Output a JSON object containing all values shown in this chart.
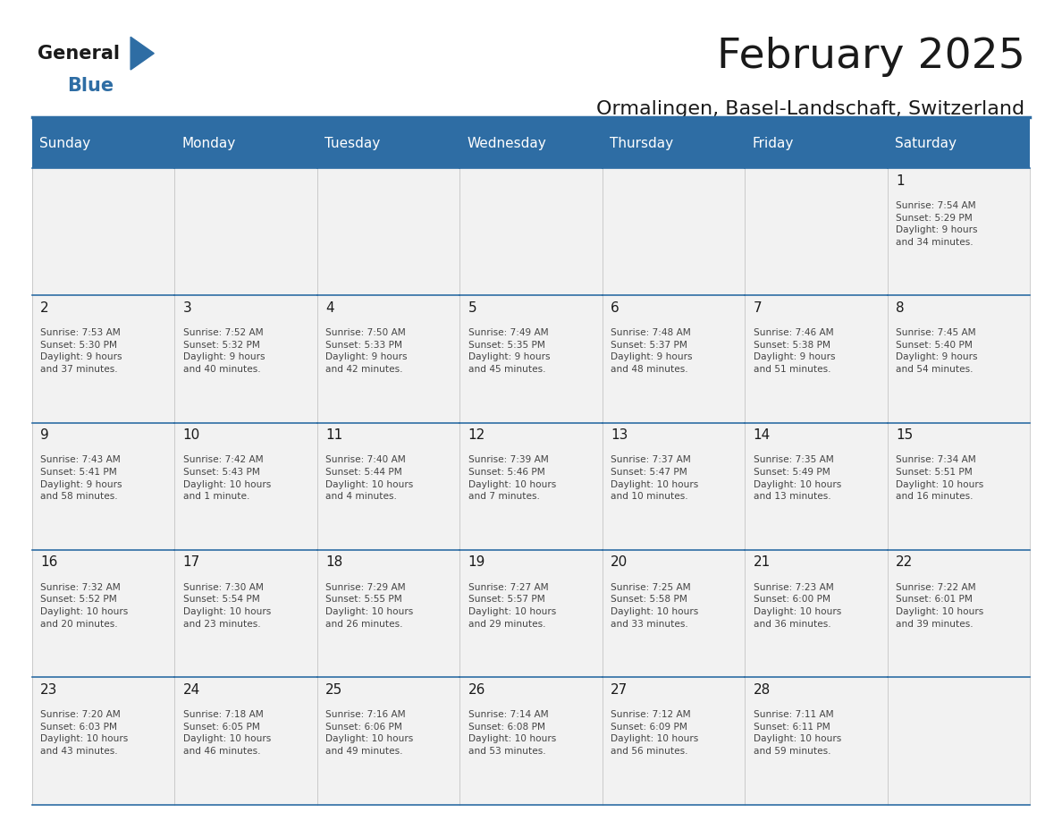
{
  "title": "February 2025",
  "subtitle": "Ormalingen, Basel-Landschaft, Switzerland",
  "header_bg_color": "#2E6DA4",
  "header_text_color": "#FFFFFF",
  "cell_bg_color": "#F2F2F2",
  "day_headers": [
    "Sunday",
    "Monday",
    "Tuesday",
    "Wednesday",
    "Thursday",
    "Friday",
    "Saturday"
  ],
  "title_color": "#1a1a1a",
  "subtitle_color": "#1a1a1a",
  "cell_text_color": "#444444",
  "day_num_color": "#1a1a1a",
  "logo_general_color": "#1a1a1a",
  "logo_blue_color": "#2E6DA4",
  "weeks": [
    [
      {
        "day": null,
        "info": null
      },
      {
        "day": null,
        "info": null
      },
      {
        "day": null,
        "info": null
      },
      {
        "day": null,
        "info": null
      },
      {
        "day": null,
        "info": null
      },
      {
        "day": null,
        "info": null
      },
      {
        "day": 1,
        "info": "Sunrise: 7:54 AM\nSunset: 5:29 PM\nDaylight: 9 hours\nand 34 minutes."
      }
    ],
    [
      {
        "day": 2,
        "info": "Sunrise: 7:53 AM\nSunset: 5:30 PM\nDaylight: 9 hours\nand 37 minutes."
      },
      {
        "day": 3,
        "info": "Sunrise: 7:52 AM\nSunset: 5:32 PM\nDaylight: 9 hours\nand 40 minutes."
      },
      {
        "day": 4,
        "info": "Sunrise: 7:50 AM\nSunset: 5:33 PM\nDaylight: 9 hours\nand 42 minutes."
      },
      {
        "day": 5,
        "info": "Sunrise: 7:49 AM\nSunset: 5:35 PM\nDaylight: 9 hours\nand 45 minutes."
      },
      {
        "day": 6,
        "info": "Sunrise: 7:48 AM\nSunset: 5:37 PM\nDaylight: 9 hours\nand 48 minutes."
      },
      {
        "day": 7,
        "info": "Sunrise: 7:46 AM\nSunset: 5:38 PM\nDaylight: 9 hours\nand 51 minutes."
      },
      {
        "day": 8,
        "info": "Sunrise: 7:45 AM\nSunset: 5:40 PM\nDaylight: 9 hours\nand 54 minutes."
      }
    ],
    [
      {
        "day": 9,
        "info": "Sunrise: 7:43 AM\nSunset: 5:41 PM\nDaylight: 9 hours\nand 58 minutes."
      },
      {
        "day": 10,
        "info": "Sunrise: 7:42 AM\nSunset: 5:43 PM\nDaylight: 10 hours\nand 1 minute."
      },
      {
        "day": 11,
        "info": "Sunrise: 7:40 AM\nSunset: 5:44 PM\nDaylight: 10 hours\nand 4 minutes."
      },
      {
        "day": 12,
        "info": "Sunrise: 7:39 AM\nSunset: 5:46 PM\nDaylight: 10 hours\nand 7 minutes."
      },
      {
        "day": 13,
        "info": "Sunrise: 7:37 AM\nSunset: 5:47 PM\nDaylight: 10 hours\nand 10 minutes."
      },
      {
        "day": 14,
        "info": "Sunrise: 7:35 AM\nSunset: 5:49 PM\nDaylight: 10 hours\nand 13 minutes."
      },
      {
        "day": 15,
        "info": "Sunrise: 7:34 AM\nSunset: 5:51 PM\nDaylight: 10 hours\nand 16 minutes."
      }
    ],
    [
      {
        "day": 16,
        "info": "Sunrise: 7:32 AM\nSunset: 5:52 PM\nDaylight: 10 hours\nand 20 minutes."
      },
      {
        "day": 17,
        "info": "Sunrise: 7:30 AM\nSunset: 5:54 PM\nDaylight: 10 hours\nand 23 minutes."
      },
      {
        "day": 18,
        "info": "Sunrise: 7:29 AM\nSunset: 5:55 PM\nDaylight: 10 hours\nand 26 minutes."
      },
      {
        "day": 19,
        "info": "Sunrise: 7:27 AM\nSunset: 5:57 PM\nDaylight: 10 hours\nand 29 minutes."
      },
      {
        "day": 20,
        "info": "Sunrise: 7:25 AM\nSunset: 5:58 PM\nDaylight: 10 hours\nand 33 minutes."
      },
      {
        "day": 21,
        "info": "Sunrise: 7:23 AM\nSunset: 6:00 PM\nDaylight: 10 hours\nand 36 minutes."
      },
      {
        "day": 22,
        "info": "Sunrise: 7:22 AM\nSunset: 6:01 PM\nDaylight: 10 hours\nand 39 minutes."
      }
    ],
    [
      {
        "day": 23,
        "info": "Sunrise: 7:20 AM\nSunset: 6:03 PM\nDaylight: 10 hours\nand 43 minutes."
      },
      {
        "day": 24,
        "info": "Sunrise: 7:18 AM\nSunset: 6:05 PM\nDaylight: 10 hours\nand 46 minutes."
      },
      {
        "day": 25,
        "info": "Sunrise: 7:16 AM\nSunset: 6:06 PM\nDaylight: 10 hours\nand 49 minutes."
      },
      {
        "day": 26,
        "info": "Sunrise: 7:14 AM\nSunset: 6:08 PM\nDaylight: 10 hours\nand 53 minutes."
      },
      {
        "day": 27,
        "info": "Sunrise: 7:12 AM\nSunset: 6:09 PM\nDaylight: 10 hours\nand 56 minutes."
      },
      {
        "day": 28,
        "info": "Sunrise: 7:11 AM\nSunset: 6:11 PM\nDaylight: 10 hours\nand 59 minutes."
      },
      {
        "day": null,
        "info": null
      }
    ]
  ]
}
